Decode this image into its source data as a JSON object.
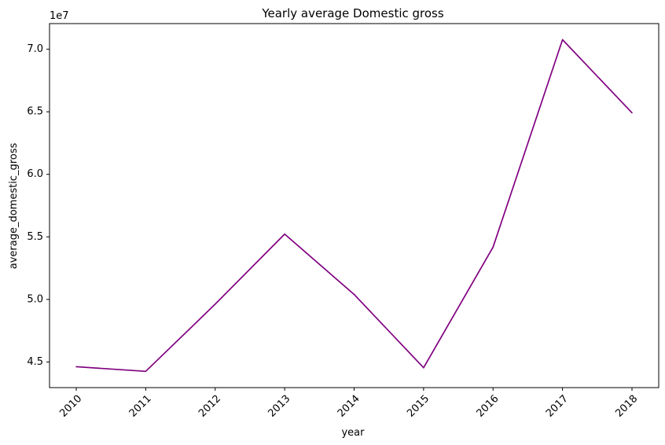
{
  "chart_data": {
    "type": "line",
    "title": "Yearly average Domestic gross",
    "xlabel": "year",
    "ylabel": "average_domestic_gross",
    "offset_text": "1e7",
    "x": [
      "2010",
      "2011",
      "2012",
      "2013",
      "2014",
      "2015",
      "2016",
      "2017",
      "2018"
    ],
    "series": [
      {
        "values": [
          44620000,
          44250000,
          49620000,
          55220000,
          50400000,
          44540000,
          54180000,
          70760000,
          64920000
        ],
        "color": "#800080"
      }
    ],
    "yticks": [
      4.5,
      5.0,
      5.5,
      6.0,
      6.5,
      7.0
    ],
    "ytick_labels": [
      "4.5",
      "5.0",
      "5.5",
      "6.0",
      "6.5",
      "7.0"
    ],
    "ylim": [
      42950000,
      72050000
    ],
    "x_tick_rotation": 45,
    "grid": false,
    "legend": "none"
  }
}
